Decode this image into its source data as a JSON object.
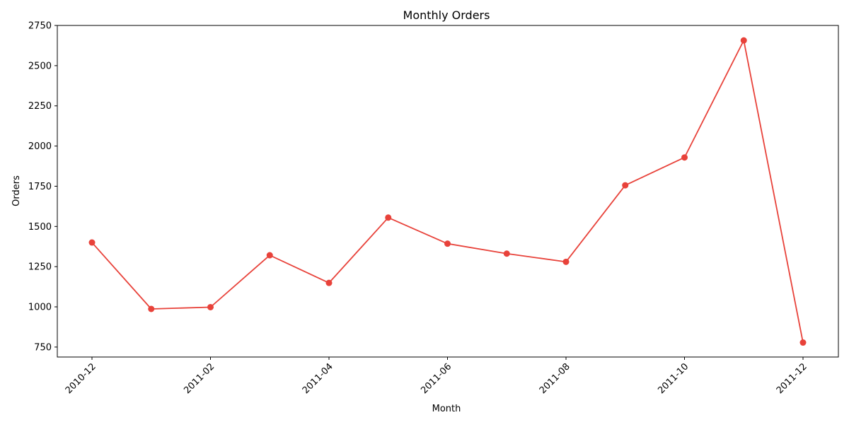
{
  "chart_data": {
    "type": "line",
    "title": "Monthly Orders",
    "xlabel": "Month",
    "ylabel": "Orders",
    "x": [
      "2010-12",
      "2011-01",
      "2011-02",
      "2011-03",
      "2011-04",
      "2011-05",
      "2011-06",
      "2011-07",
      "2011-08",
      "2011-09",
      "2011-10",
      "2011-11",
      "2011-12"
    ],
    "series": [
      {
        "values": [
          1400,
          987,
          998,
          1321,
          1149,
          1555,
          1393,
          1331,
          1280,
          1756,
          1929,
          2657,
          778
        ],
        "color": "#e8423a",
        "marker": "circle"
      }
    ],
    "x_ticks": [
      "2010-12",
      "2011-02",
      "2011-04",
      "2011-06",
      "2011-08",
      "2011-10",
      "2011-12"
    ],
    "x_tick_rotation": 45,
    "y_ticks": [
      750,
      1000,
      1250,
      1500,
      1750,
      2000,
      2250,
      2500,
      2750
    ],
    "ylim": [
      688,
      2750
    ],
    "grid": false,
    "legend": "none"
  }
}
